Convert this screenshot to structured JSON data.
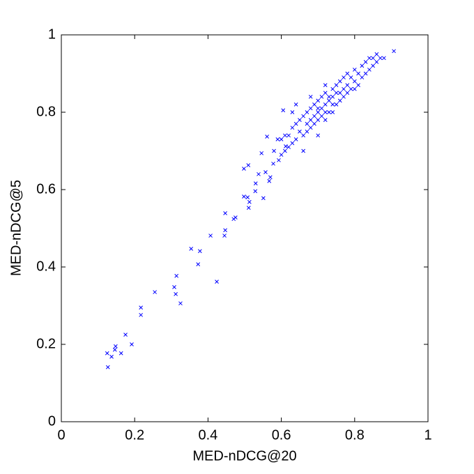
{
  "chart_data": {
    "type": "scatter",
    "xlabel": "MED-nDCG@20",
    "ylabel": "MED-nDCG@5",
    "color": "#0000ff",
    "xlim": [
      0,
      1
    ],
    "ylim": [
      0,
      1
    ],
    "xticks": [
      0,
      0.2,
      0.4,
      0.6,
      0.8,
      1
    ],
    "yticks": [
      0,
      0.2,
      0.4,
      0.6,
      0.8,
      1
    ],
    "x": [
      0.127,
      0.125,
      0.137,
      0.148,
      0.146,
      0.163,
      0.175,
      0.192,
      0.217,
      0.217,
      0.255,
      0.308,
      0.314,
      0.312,
      0.325,
      0.354,
      0.373,
      0.378,
      0.407,
      0.424,
      0.447,
      0.447,
      0.445,
      0.47,
      0.475,
      0.498,
      0.508,
      0.511,
      0.513,
      0.529,
      0.53,
      0.551,
      0.498,
      0.51,
      0.538,
      0.557,
      0.57,
      0.567,
      0.546,
      0.561,
      0.578,
      0.593,
      0.605,
      0.612,
      0.6,
      0.61,
      0.62,
      0.62,
      0.63,
      0.63,
      0.64,
      0.64,
      0.65,
      0.65,
      0.66,
      0.66,
      0.67,
      0.67,
      0.67,
      0.68,
      0.68,
      0.68,
      0.69,
      0.69,
      0.69,
      0.7,
      0.7,
      0.7,
      0.7,
      0.71,
      0.71,
      0.71,
      0.72,
      0.72,
      0.72,
      0.72,
      0.73,
      0.73,
      0.73,
      0.74,
      0.74,
      0.74,
      0.74,
      0.75,
      0.75,
      0.75,
      0.76,
      0.76,
      0.76,
      0.77,
      0.77,
      0.77,
      0.78,
      0.78,
      0.78,
      0.79,
      0.79,
      0.8,
      0.8,
      0.8,
      0.81,
      0.81,
      0.82,
      0.82,
      0.83,
      0.83,
      0.84,
      0.84,
      0.85,
      0.85,
      0.86,
      0.86,
      0.87,
      0.88,
      0.64,
      0.66,
      0.68,
      0.7,
      0.72,
      0.58,
      0.59,
      0.6,
      0.61,
      0.63,
      0.907
    ],
    "y": [
      0.141,
      0.177,
      0.168,
      0.195,
      0.186,
      0.177,
      0.225,
      0.2,
      0.295,
      0.276,
      0.335,
      0.348,
      0.377,
      0.33,
      0.306,
      0.447,
      0.407,
      0.441,
      0.481,
      0.362,
      0.539,
      0.495,
      0.481,
      0.524,
      0.528,
      0.582,
      0.58,
      0.553,
      0.568,
      0.596,
      0.616,
      0.578,
      0.654,
      0.663,
      0.64,
      0.645,
      0.632,
      0.622,
      0.694,
      0.737,
      0.667,
      0.676,
      0.805,
      0.712,
      0.73,
      0.7,
      0.74,
      0.71,
      0.76,
      0.72,
      0.77,
      0.73,
      0.78,
      0.75,
      0.79,
      0.74,
      0.8,
      0.77,
      0.75,
      0.81,
      0.78,
      0.76,
      0.82,
      0.79,
      0.77,
      0.83,
      0.8,
      0.78,
      0.81,
      0.84,
      0.81,
      0.79,
      0.85,
      0.82,
      0.8,
      0.78,
      0.84,
      0.83,
      0.8,
      0.86,
      0.84,
      0.82,
      0.8,
      0.87,
      0.85,
      0.82,
      0.88,
      0.85,
      0.83,
      0.89,
      0.86,
      0.84,
      0.9,
      0.87,
      0.85,
      0.89,
      0.86,
      0.91,
      0.88,
      0.86,
      0.9,
      0.87,
      0.92,
      0.89,
      0.93,
      0.9,
      0.94,
      0.91,
      0.94,
      0.92,
      0.95,
      0.93,
      0.94,
      0.94,
      0.82,
      0.7,
      0.84,
      0.74,
      0.87,
      0.7,
      0.73,
      0.69,
      0.74,
      0.8,
      0.958
    ]
  }
}
